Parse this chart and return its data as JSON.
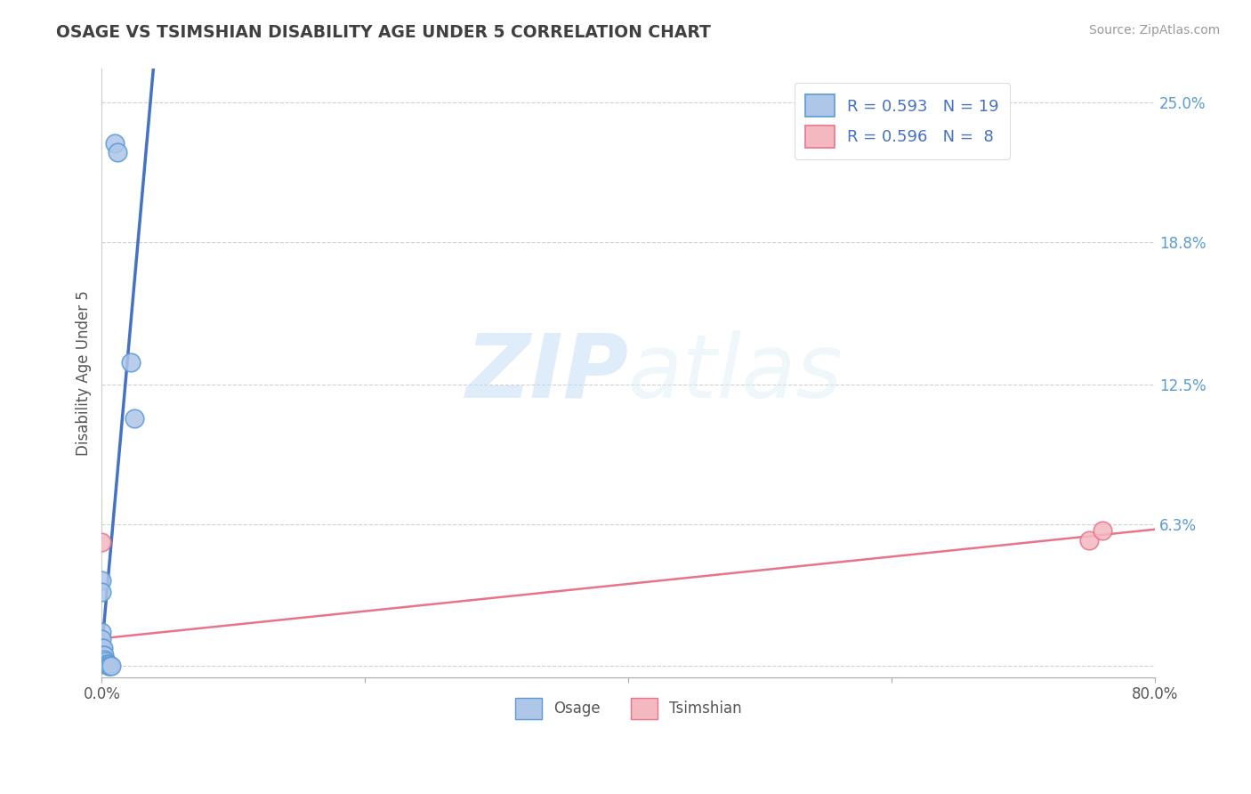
{
  "title": "OSAGE VS TSIMSHIAN DISABILITY AGE UNDER 5 CORRELATION CHART",
  "source": "Source: ZipAtlas.com",
  "ylabel": "Disability Age Under 5",
  "xlim": [
    0.0,
    0.8
  ],
  "ylim": [
    -0.005,
    0.265
  ],
  "yticks": [
    0.0,
    0.063,
    0.125,
    0.188,
    0.25
  ],
  "ytick_labels": [
    "",
    "6.3%",
    "12.5%",
    "18.8%",
    "25.0%"
  ],
  "xticks": [
    0.0,
    0.2,
    0.4,
    0.6,
    0.8
  ],
  "xtick_labels": [
    "0.0%",
    "",
    "",
    "",
    "80.0%"
  ],
  "osage_x": [
    0.01,
    0.012,
    0.0,
    0.0,
    0.0,
    0.0,
    0.0,
    0.001,
    0.001,
    0.002,
    0.002,
    0.003,
    0.004,
    0.005,
    0.005,
    0.006,
    0.007,
    0.022,
    0.025
  ],
  "osage_y": [
    0.232,
    0.228,
    0.038,
    0.033,
    0.015,
    0.012,
    0.008,
    0.008,
    0.005,
    0.005,
    0.003,
    0.002,
    0.001,
    0.001,
    0.0,
    0.0,
    0.0,
    0.135,
    0.11
  ],
  "tsimshian_x": [
    0.0,
    0.0,
    0.0,
    0.0,
    0.001,
    0.001,
    0.75,
    0.76
  ],
  "tsimshian_y": [
    0.055,
    0.008,
    0.005,
    0.003,
    0.002,
    0.001,
    0.056,
    0.06
  ],
  "osage_color": "#aec6e8",
  "osage_edge_color": "#5b9bd5",
  "tsimshian_color": "#f4b8c1",
  "tsimshian_edge_color": "#e8748a",
  "osage_r": 0.593,
  "osage_n": 19,
  "tsimshian_r": 0.596,
  "tsimshian_n": 8,
  "regression_blue": "#4472C4",
  "regression_pink": "#e8748a",
  "watermark_zip": "ZIP",
  "watermark_atlas": "atlas",
  "background_color": "#ffffff",
  "title_color": "#404040",
  "axis_label_color": "#555555",
  "ytick_color": "#5b9bd5",
  "grid_color": "#cccccc"
}
